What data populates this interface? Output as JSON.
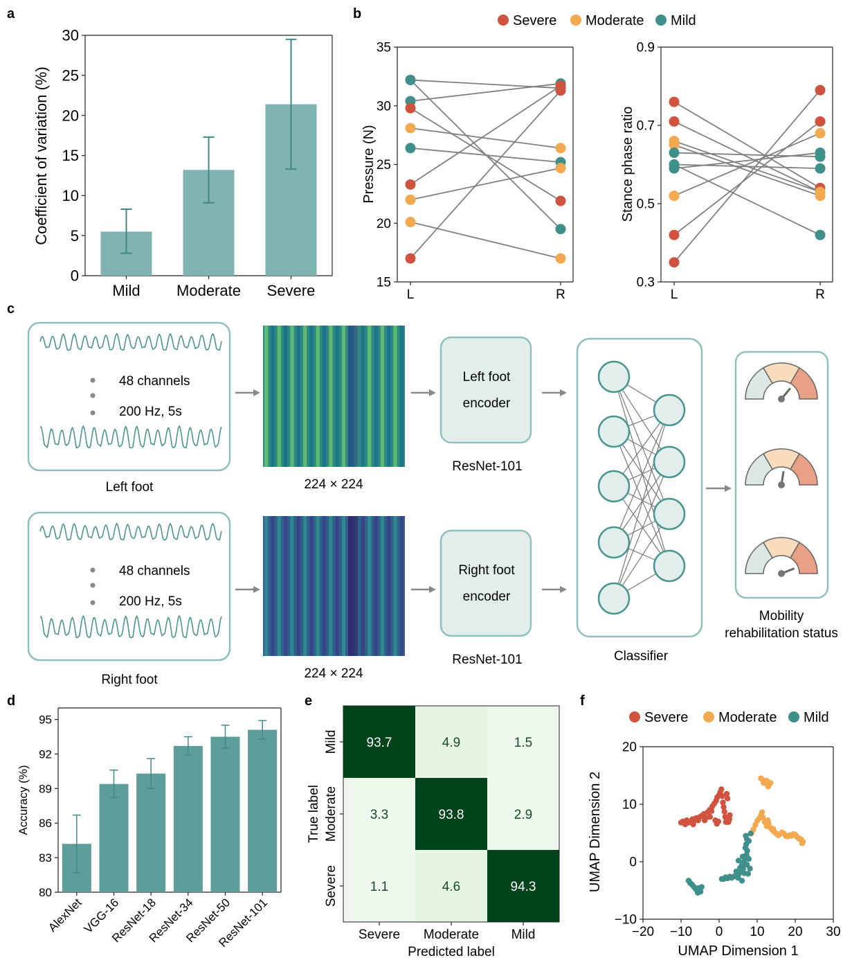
{
  "panels": {
    "a": "a",
    "b": "b",
    "c": "c",
    "d": "d",
    "e": "e",
    "f": "f"
  },
  "colors": {
    "severe": "#d0533f",
    "moderate": "#f3a94f",
    "mild": "#3f8f8a",
    "bar": "#7fb4b0",
    "bar_err": "#3f8a85",
    "bar_d": "#5e9e9a",
    "line": "#808080",
    "pipeline_stroke": "#8fc1bc",
    "pipeline_fill": "#e1eeec",
    "cm_dark": "#00441b",
    "cm_light": "#eef7ec"
  },
  "chart_data": [
    {
      "panel": "a",
      "type": "bar",
      "categories": [
        "Mild",
        "Moderate",
        "Severe"
      ],
      "values": [
        5.5,
        13.2,
        21.4
      ],
      "errors": [
        [
          2.8,
          8.3
        ],
        [
          9.1,
          17.3
        ],
        [
          13.3,
          29.5
        ]
      ],
      "ylabel": "Coefficient of variation (%)",
      "ylim": [
        0,
        30
      ],
      "yticks": [
        0,
        5,
        10,
        15,
        20,
        25,
        30
      ]
    },
    {
      "panel": "b-left",
      "type": "line",
      "legend": [
        "Severe",
        "Moderate",
        "Mild"
      ],
      "legend_position": "top",
      "categories": [
        "L",
        "R"
      ],
      "ylabel": "Pressure (N)",
      "ylim": [
        15,
        35
      ],
      "yticks": [
        15,
        20,
        25,
        30,
        35
      ],
      "pairs": [
        {
          "group": "mild",
          "L": 32.2,
          "R": 31.5
        },
        {
          "group": "mild",
          "L": 30.4,
          "R": 31.9
        },
        {
          "group": "severe",
          "L": 29.8,
          "R": 21.9
        },
        {
          "group": "moderate",
          "L": 28.1,
          "R": 26.4
        },
        {
          "group": "mild",
          "L": 26.4,
          "R": 25.2
        },
        {
          "group": "severe",
          "L": 23.3,
          "R": 31.7
        },
        {
          "group": "moderate",
          "L": 22.0,
          "R": 24.7
        },
        {
          "group": "moderate",
          "L": 20.1,
          "R": 17.0
        },
        {
          "group": "severe",
          "L": 17.0,
          "R": 31.3
        },
        {
          "group": "mild",
          "L": 32.2,
          "R": 19.5
        }
      ]
    },
    {
      "panel": "b-right",
      "type": "line",
      "categories": [
        "L",
        "R"
      ],
      "ylabel": "Stance phase ratio",
      "ylim": [
        0.3,
        0.9
      ],
      "yticks": [
        0.3,
        0.5,
        0.7,
        0.9
      ],
      "pairs": [
        {
          "group": "severe",
          "L": 0.76,
          "R": 0.54
        },
        {
          "group": "severe",
          "L": 0.71,
          "R": 0.53
        },
        {
          "group": "moderate",
          "L": 0.66,
          "R": 0.53
        },
        {
          "group": "moderate",
          "L": 0.65,
          "R": 0.52
        },
        {
          "group": "mild",
          "L": 0.63,
          "R": 0.62
        },
        {
          "group": "mild",
          "L": 0.6,
          "R": 0.59
        },
        {
          "group": "mild",
          "L": 0.59,
          "R": 0.63
        },
        {
          "group": "moderate",
          "L": 0.52,
          "R": 0.68
        },
        {
          "group": "severe",
          "L": 0.42,
          "R": 0.71
        },
        {
          "group": "severe",
          "L": 0.35,
          "R": 0.79
        },
        {
          "group": "mild",
          "L": 0.6,
          "R": 0.42
        }
      ]
    },
    {
      "panel": "d",
      "type": "bar",
      "categories": [
        "AlexNet",
        "VGG-16",
        "ResNet-18",
        "ResNet-34",
        "ResNet-50",
        "ResNet-101"
      ],
      "values": [
        84.2,
        89.4,
        90.3,
        92.7,
        93.5,
        94.1
      ],
      "errors": [
        [
          81.7,
          86.7
        ],
        [
          88.2,
          90.6
        ],
        [
          89.0,
          91.6
        ],
        [
          91.9,
          93.5
        ],
        [
          92.5,
          94.5
        ],
        [
          93.3,
          94.9
        ]
      ],
      "ylabel": "Accuracy (%)",
      "ylim": [
        80,
        96
      ],
      "yticks": [
        80,
        83,
        86,
        89,
        92,
        95
      ]
    },
    {
      "panel": "e",
      "type": "heatmap",
      "rows": [
        "Mild",
        "Moderate",
        "Severe"
      ],
      "cols": [
        "Severe",
        "Moderate",
        "Mild"
      ],
      "values": [
        [
          93.7,
          4.9,
          1.5
        ],
        [
          3.3,
          93.8,
          2.9
        ],
        [
          1.1,
          4.6,
          94.3
        ]
      ],
      "xlabel": "Predicted label",
      "ylabel": "True label"
    },
    {
      "panel": "f",
      "type": "scatter",
      "legend": [
        "Severe",
        "Moderate",
        "Mild"
      ],
      "legend_position": "top",
      "xlabel": "UMAP Dimension 1",
      "ylabel": "UMAP Dimension 2",
      "xlim": [
        -20,
        30
      ],
      "ylim": [
        -10,
        20
      ],
      "xticks": [
        -20,
        -10,
        0,
        10,
        20,
        30
      ],
      "yticks": [
        -10,
        0,
        10,
        20
      ],
      "series": [
        {
          "name": "Severe",
          "points": [
            [
              -10,
              6.8
            ],
            [
              -9.5,
              7.0
            ],
            [
              -9,
              6.9
            ],
            [
              -8.5,
              7.2
            ],
            [
              -8,
              6.8
            ],
            [
              -7.5,
              7.0
            ],
            [
              -7,
              7.4
            ],
            [
              -6.5,
              7.1
            ],
            [
              -6,
              7.6
            ],
            [
              -5.5,
              7.2
            ],
            [
              -5,
              7.8
            ],
            [
              -4.5,
              8.0
            ],
            [
              -4,
              8.3
            ],
            [
              -3.5,
              7.6
            ],
            [
              -3,
              8.6
            ],
            [
              -2.5,
              9.0
            ],
            [
              -2,
              8.8
            ],
            [
              -1.8,
              9.6
            ],
            [
              -1.3,
              10.1
            ],
            [
              -0.8,
              10.6
            ],
            [
              -0.5,
              11.2
            ],
            [
              0,
              11.6
            ],
            [
              0.3,
              12.1
            ],
            [
              0.6,
              12.6
            ],
            [
              0.8,
              11.4
            ],
            [
              1.0,
              10.3
            ],
            [
              1.2,
              9.5
            ],
            [
              1.4,
              8.7
            ],
            [
              1.6,
              7.8
            ],
            [
              2.0,
              7.2
            ],
            [
              2.4,
              6.9
            ],
            [
              2.7,
              7.4
            ],
            [
              2.8,
              8.1
            ],
            [
              2.5,
              7.0
            ],
            [
              1.8,
              6.9
            ],
            [
              -0.2,
              7.0
            ],
            [
              -1.0,
              7.2
            ],
            [
              -0.6,
              6.6
            ],
            [
              -2.4,
              7.8
            ],
            [
              -3.8,
              7.2
            ],
            [
              -6.8,
              6.5
            ],
            [
              -8.9,
              6.5
            ],
            [
              2.0,
              11.8
            ],
            [
              2.2,
              11.0
            ]
          ]
        },
        {
          "name": "Moderate",
          "points": [
            [
              11,
              14.5
            ],
            [
              11.5,
              14.2
            ],
            [
              12,
              13.9
            ],
            [
              12.5,
              13.6
            ],
            [
              13,
              13.3
            ],
            [
              13.5,
              13.7
            ],
            [
              12.5,
              14.1
            ],
            [
              11.7,
              13.7
            ],
            [
              12.9,
              13.1
            ],
            [
              8.5,
              5.0
            ],
            [
              9,
              5.6
            ],
            [
              9.5,
              6.4
            ],
            [
              10,
              7.1
            ],
            [
              10.5,
              7.5
            ],
            [
              11,
              8.1
            ],
            [
              11.5,
              7.7
            ],
            [
              12,
              6.9
            ],
            [
              12.5,
              6.2
            ],
            [
              13,
              6.7
            ],
            [
              13.5,
              5.9
            ],
            [
              14,
              5.5
            ],
            [
              14.5,
              5.2
            ],
            [
              15,
              4.9
            ],
            [
              15.5,
              4.6
            ],
            [
              16,
              4.8
            ],
            [
              16.5,
              5.1
            ],
            [
              17,
              4.9
            ],
            [
              17.5,
              4.5
            ],
            [
              18,
              4.4
            ],
            [
              18.5,
              4.6
            ],
            [
              19,
              4.5
            ],
            [
              19.5,
              4.8
            ],
            [
              20,
              4.7
            ],
            [
              20.5,
              4.3
            ],
            [
              21,
              4.0
            ],
            [
              21.5,
              3.9
            ],
            [
              22,
              3.5
            ],
            [
              21.8,
              3.2
            ],
            [
              12.8,
              7.2
            ],
            [
              11.3,
              8.6
            ],
            [
              14.2,
              5.7
            ]
          ]
        },
        {
          "name": "Mild",
          "points": [
            [
              7,
              4.5
            ],
            [
              7.3,
              3.9
            ],
            [
              7.1,
              3.0
            ],
            [
              6.9,
              2.4
            ],
            [
              7.4,
              1.9
            ],
            [
              7.2,
              1.2
            ],
            [
              6.8,
              0.6
            ],
            [
              6.5,
              0.0
            ],
            [
              6.0,
              -0.6
            ],
            [
              6.3,
              -1.2
            ],
            [
              5.8,
              -1.6
            ],
            [
              5.3,
              -2.0
            ],
            [
              4.8,
              -2.3
            ],
            [
              4.3,
              -2.5
            ],
            [
              3.8,
              -2.6
            ],
            [
              3.3,
              -2.8
            ],
            [
              2.8,
              -2.6
            ],
            [
              2.2,
              -2.9
            ],
            [
              1.7,
              -2.7
            ],
            [
              1.2,
              -3.0
            ],
            [
              0.7,
              -3.0
            ],
            [
              5.5,
              -1.1
            ],
            [
              4.5,
              -1.7
            ],
            [
              5.0,
              -2.8
            ],
            [
              6.0,
              -3.3
            ],
            [
              6.6,
              -2.0
            ],
            [
              7.3,
              -0.5
            ],
            [
              7.8,
              0.5
            ],
            [
              8.1,
              -1.2
            ],
            [
              7.6,
              -2.1
            ],
            [
              6.2,
              0.9
            ],
            [
              5.1,
              0.2
            ],
            [
              7.8,
              3.6
            ],
            [
              8.3,
              4.9
            ],
            [
              -8,
              -3.3
            ],
            [
              -7.6,
              -3.7
            ],
            [
              -7.1,
              -4.0
            ],
            [
              -6.6,
              -4.4
            ],
            [
              -6.2,
              -4.7
            ],
            [
              -5.8,
              -5.0
            ],
            [
              -5.4,
              -4.6
            ],
            [
              -5.0,
              -4.8
            ],
            [
              -4.6,
              -4.4
            ],
            [
              -4.9,
              -5.2
            ],
            [
              -5.6,
              -5.4
            ]
          ]
        }
      ]
    }
  ],
  "panel_c": {
    "channels_label": "48 channels",
    "rate_label": "200 Hz, 5s",
    "left_caption": "Left foot",
    "right_caption": "Right foot",
    "size_label": "224 × 224",
    "left_encoder_line1": "Left foot",
    "left_encoder_line2": "encoder",
    "right_encoder_line1": "Right foot",
    "right_encoder_line2": "encoder",
    "resnet_label": "ResNet-101",
    "classifier_label": "Classifier",
    "status_line1": "Mobility",
    "status_line2": "rehabilitation status",
    "gauge_levels": [
      0.72,
      0.55,
      0.88
    ],
    "gauge_colors": [
      "#dde8e6",
      "#f8dcbd",
      "#e8a184"
    ]
  }
}
